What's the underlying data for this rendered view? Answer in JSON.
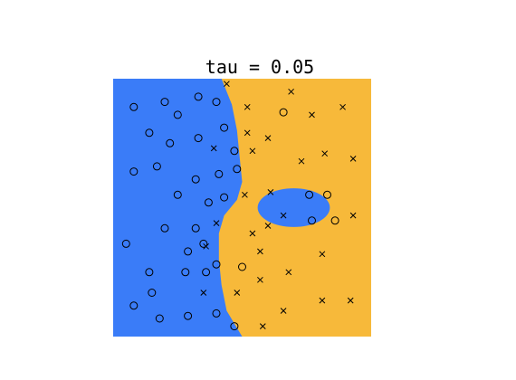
{
  "chart_data": {
    "type": "scatter",
    "title": "tau = 0.05",
    "xlabel": "",
    "ylabel": "",
    "xlim": [
      0,
      1
    ],
    "ylim": [
      0,
      1
    ],
    "axes_visible": false,
    "grid": false,
    "legend": "none",
    "colors": {
      "class_o_region": "#3a7cf8",
      "class_x_region": "#f7b93a",
      "markers": "#000000"
    },
    "decision_boundary": {
      "class_o_left_edge_y": [
        1.0,
        0.9,
        0.8,
        0.7,
        0.6,
        0.53,
        0.47,
        0.4,
        0.3,
        0.2,
        0.1,
        0.0
      ],
      "class_o_left_edge_x": [
        0.42,
        0.46,
        0.48,
        0.49,
        0.5,
        0.48,
        0.43,
        0.41,
        0.41,
        0.42,
        0.44,
        0.5
      ],
      "island_center": [
        0.7,
        0.5
      ],
      "island_radii": [
        0.14,
        0.075
      ]
    },
    "series": [
      {
        "marker": "o",
        "points": [
          [
            0.08,
            0.89
          ],
          [
            0.2,
            0.91
          ],
          [
            0.25,
            0.86
          ],
          [
            0.33,
            0.93
          ],
          [
            0.4,
            0.91
          ],
          [
            0.14,
            0.79
          ],
          [
            0.22,
            0.75
          ],
          [
            0.33,
            0.77
          ],
          [
            0.43,
            0.81
          ],
          [
            0.47,
            0.72
          ],
          [
            0.08,
            0.64
          ],
          [
            0.17,
            0.66
          ],
          [
            0.32,
            0.61
          ],
          [
            0.41,
            0.63
          ],
          [
            0.48,
            0.65
          ],
          [
            0.25,
            0.55
          ],
          [
            0.37,
            0.52
          ],
          [
            0.43,
            0.54
          ],
          [
            0.2,
            0.42
          ],
          [
            0.32,
            0.42
          ],
          [
            0.05,
            0.36
          ],
          [
            0.29,
            0.33
          ],
          [
            0.35,
            0.36
          ],
          [
            0.14,
            0.25
          ],
          [
            0.28,
            0.25
          ],
          [
            0.36,
            0.25
          ],
          [
            0.4,
            0.28
          ],
          [
            0.5,
            0.27
          ],
          [
            0.15,
            0.17
          ],
          [
            0.08,
            0.12
          ],
          [
            0.18,
            0.07
          ],
          [
            0.29,
            0.08
          ],
          [
            0.4,
            0.09
          ],
          [
            0.47,
            0.04
          ],
          [
            0.76,
            0.55
          ],
          [
            0.83,
            0.55
          ],
          [
            0.77,
            0.45
          ],
          [
            0.86,
            0.45
          ],
          [
            0.66,
            0.87
          ]
        ]
      },
      {
        "marker": "x",
        "points": [
          [
            0.44,
            0.98
          ],
          [
            0.69,
            0.95
          ],
          [
            0.52,
            0.89
          ],
          [
            0.77,
            0.86
          ],
          [
            0.89,
            0.89
          ],
          [
            0.52,
            0.79
          ],
          [
            0.6,
            0.77
          ],
          [
            0.39,
            0.73
          ],
          [
            0.54,
            0.72
          ],
          [
            0.73,
            0.68
          ],
          [
            0.82,
            0.71
          ],
          [
            0.93,
            0.69
          ],
          [
            0.61,
            0.56
          ],
          [
            0.51,
            0.55
          ],
          [
            0.66,
            0.47
          ],
          [
            0.93,
            0.47
          ],
          [
            0.4,
            0.44
          ],
          [
            0.54,
            0.4
          ],
          [
            0.6,
            0.43
          ],
          [
            0.36,
            0.35
          ],
          [
            0.57,
            0.33
          ],
          [
            0.81,
            0.32
          ],
          [
            0.68,
            0.25
          ],
          [
            0.57,
            0.22
          ],
          [
            0.35,
            0.17
          ],
          [
            0.48,
            0.17
          ],
          [
            0.66,
            0.1
          ],
          [
            0.81,
            0.14
          ],
          [
            0.92,
            0.14
          ],
          [
            0.58,
            0.04
          ]
        ]
      }
    ]
  }
}
